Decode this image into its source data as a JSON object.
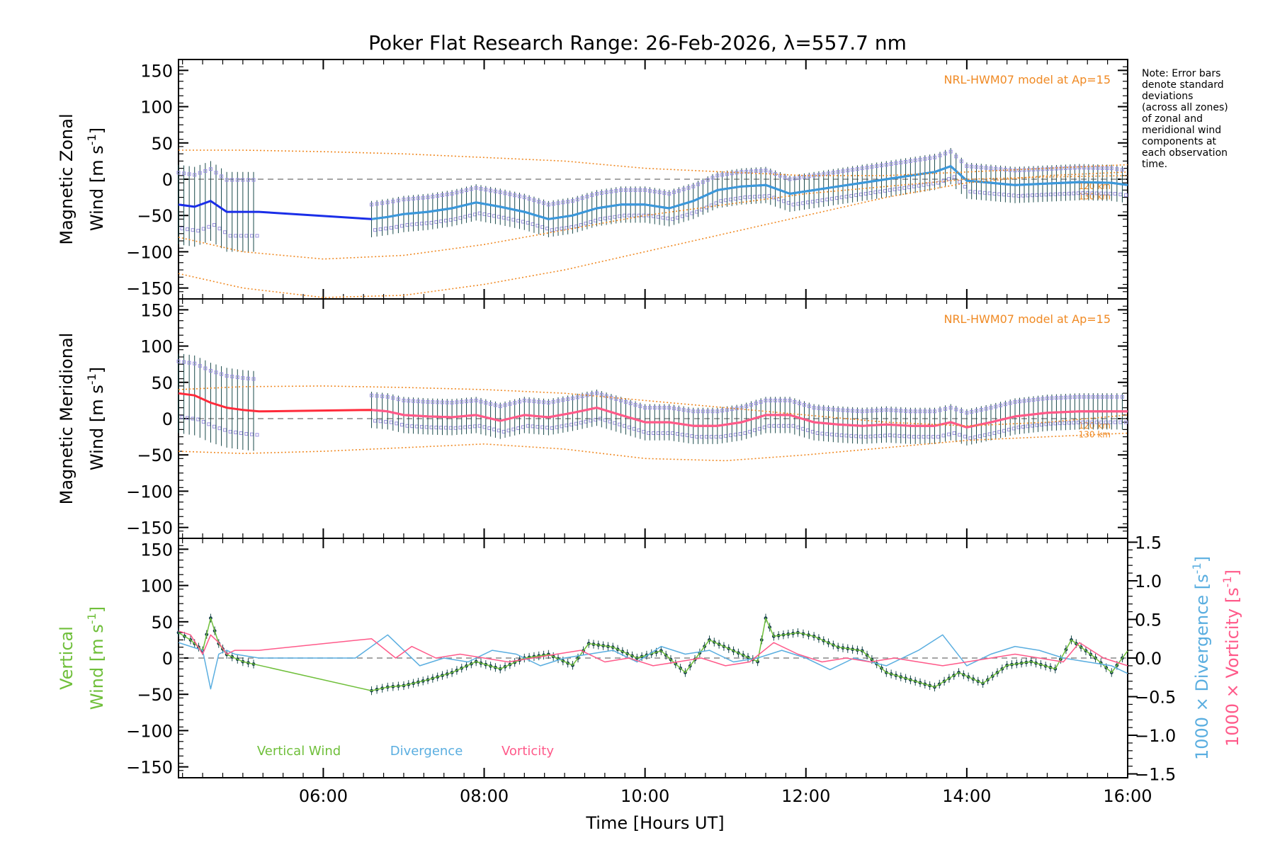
{
  "title": "Poker Flat Research Range: 26-Feb-2026, λ=557.7 nm",
  "note": [
    "Note: Error bars",
    "denote standard",
    "deviations",
    "(across all zones)",
    "of zonal and",
    "meridional wind",
    "components at",
    "each observation",
    "time."
  ],
  "xlabel": "Time [Hours UT]",
  "colors": {
    "model": "#f08a24",
    "zonal": "#1a2ee8",
    "zonal_smooth": "#3a9ad9",
    "meridional": "#ff2a3a",
    "meridional_smooth": "#ff5a8a",
    "vertical": "#6fbf3a",
    "divergence": "#5aaee0",
    "vorticity": "#ff5a8a",
    "errorbar": "#1a4a4a",
    "scatter": "#9a90e0"
  },
  "chart_data": [
    {
      "type": "line",
      "panel": "zonal",
      "ylabel_line1": "Magnetic Zonal",
      "ylabel_line2": "Wind [m s",
      "ylabel_sup": "-1",
      "ylabel_tail": "]",
      "model_label": "NRL-HWM07 model at Ap=15",
      "model_alt_labels": [
        "120 km",
        "130 km"
      ],
      "xlim": [
        4.2,
        16.0
      ],
      "ylim": [
        -165,
        165
      ],
      "yticks": [
        -150,
        -100,
        -50,
        0,
        50,
        100,
        150
      ],
      "ytick_labels": [
        "−150",
        "−100",
        "−50",
        "0",
        "50",
        "100",
        "150"
      ],
      "series": [
        {
          "name": "Zonal wind",
          "x": [
            4.2,
            4.4,
            4.6,
            4.8,
            5.0,
            5.2,
            6.6,
            6.8,
            7.0,
            7.3,
            7.6,
            7.9,
            8.2,
            8.5,
            8.8,
            9.1,
            9.4,
            9.7,
            10.0,
            10.3,
            10.6,
            10.9,
            11.2,
            11.5,
            11.8,
            12.1,
            12.4,
            12.7,
            13.0,
            13.3,
            13.6,
            13.8,
            14.0,
            14.3,
            14.6,
            15.0,
            15.4,
            15.8,
            16.0
          ],
          "y": [
            -35,
            -38,
            -30,
            -45,
            -45,
            -45,
            -55,
            -52,
            -48,
            -45,
            -40,
            -32,
            -38,
            -45,
            -55,
            -50,
            -40,
            -35,
            -35,
            -40,
            -30,
            -15,
            -10,
            -8,
            -20,
            -15,
            -10,
            -5,
            0,
            5,
            10,
            18,
            -2,
            -5,
            -8,
            -6,
            -4,
            -5,
            -8
          ]
        },
        {
          "name": "NRL-HWM07 120 km",
          "x": [
            4.2,
            5.0,
            6.0,
            7.0,
            8.0,
            9.0,
            10.0,
            11.0,
            12.0,
            13.0,
            14.0,
            15.0,
            16.0
          ],
          "y": [
            -80,
            -100,
            -110,
            -105,
            -90,
            -70,
            -50,
            -35,
            -20,
            -10,
            0,
            3,
            5
          ]
        },
        {
          "name": "NRL-HWM07 130 km",
          "x": [
            4.2,
            5.0,
            6.0,
            7.0,
            8.0,
            9.0,
            10.0,
            11.0,
            12.0,
            13.0,
            14.0,
            15.0,
            16.0
          ],
          "y": [
            -130,
            -150,
            -163,
            -160,
            -145,
            -125,
            -100,
            -75,
            -50,
            -25,
            -5,
            5,
            10
          ]
        },
        {
          "name": "NRL-HWM07 upper",
          "x": [
            4.2,
            5.0,
            6.0,
            7.0,
            8.0,
            9.0,
            10.0,
            11.0,
            12.0,
            13.0,
            14.0,
            15.0,
            16.0
          ],
          "y": [
            40,
            40,
            38,
            35,
            30,
            25,
            15,
            10,
            5,
            5,
            10,
            15,
            20
          ]
        }
      ]
    },
    {
      "type": "line",
      "panel": "meridional",
      "ylabel_line1": "Magnetic Meridional",
      "ylabel_line2": "Wind [m s",
      "ylabel_sup": "-1",
      "ylabel_tail": "]",
      "model_label": "NRL-HWM07 model at Ap=15",
      "model_alt_labels": [
        "120 km",
        "130 km"
      ],
      "xlim": [
        4.2,
        16.0
      ],
      "ylim": [
        -165,
        165
      ],
      "yticks": [
        -150,
        -100,
        -50,
        0,
        50,
        100,
        150
      ],
      "ytick_labels": [
        "−150",
        "−100",
        "−50",
        "0",
        "50",
        "100",
        "150"
      ],
      "series": [
        {
          "name": "Meridional wind",
          "x": [
            4.2,
            4.4,
            4.6,
            4.8,
            5.0,
            5.2,
            6.6,
            6.8,
            7.0,
            7.3,
            7.6,
            7.9,
            8.2,
            8.5,
            8.8,
            9.1,
            9.4,
            9.7,
            10.0,
            10.3,
            10.6,
            10.9,
            11.2,
            11.5,
            11.8,
            12.1,
            12.4,
            12.7,
            13.0,
            13.3,
            13.6,
            13.8,
            14.0,
            14.3,
            14.6,
            15.0,
            15.4,
            15.8,
            16.0
          ],
          "y": [
            35,
            32,
            22,
            15,
            12,
            10,
            12,
            10,
            5,
            3,
            2,
            5,
            -3,
            5,
            2,
            8,
            15,
            5,
            -5,
            -5,
            -10,
            -10,
            -5,
            5,
            5,
            -5,
            -8,
            -10,
            -8,
            -10,
            -10,
            -5,
            -12,
            -5,
            3,
            8,
            10,
            10,
            10
          ]
        },
        {
          "name": "NRL-HWM07 upper",
          "x": [
            4.2,
            5.0,
            6.0,
            7.0,
            8.0,
            9.0,
            10.0,
            11.0,
            12.0,
            13.0,
            14.0,
            15.0,
            16.0
          ],
          "y": [
            40,
            44,
            45,
            43,
            40,
            35,
            25,
            15,
            5,
            -5,
            -10,
            -5,
            5
          ]
        },
        {
          "name": "NRL-HWM07 lower",
          "x": [
            4.2,
            5.0,
            6.0,
            7.0,
            8.0,
            9.0,
            10.0,
            11.0,
            12.0,
            13.0,
            14.0,
            15.0,
            16.0
          ],
          "y": [
            -45,
            -48,
            -45,
            -40,
            -35,
            -42,
            -55,
            -58,
            -50,
            -40,
            -30,
            -25,
            -20
          ]
        }
      ]
    },
    {
      "type": "line",
      "panel": "vertical",
      "ylabel_line1": "Vertical",
      "ylabel_line2": "Wind [m s",
      "ylabel_sup": "-1",
      "ylabel_tail": "]",
      "right_label_div": "1000 × Divergence [s",
      "right_label_vor": "1000 × Vorticity [s",
      "right_sup": "-1",
      "right_tail": "]",
      "xlim": [
        4.2,
        16.0
      ],
      "ylim": [
        -165,
        165
      ],
      "y2lim": [
        -1.55,
        1.55
      ],
      "yticks": [
        -150,
        -100,
        -50,
        0,
        50,
        100,
        150
      ],
      "ytick_labels": [
        "−150",
        "−100",
        "−50",
        "0",
        "50",
        "100",
        "150"
      ],
      "y2ticks": [
        -1.5,
        -1.0,
        -0.5,
        0.0,
        0.5,
        1.0,
        1.5
      ],
      "y2tick_labels": [
        "−1.5",
        "−1.0",
        "−0.5",
        "0.0",
        "0.5",
        "1.0",
        "1.5"
      ],
      "legend": [
        "Vertical Wind",
        "Divergence",
        "Vorticity"
      ],
      "series": [
        {
          "name": "Vertical Wind",
          "axis": "left",
          "x": [
            4.2,
            4.35,
            4.5,
            4.6,
            4.7,
            4.8,
            5.0,
            5.2,
            6.6,
            6.8,
            7.0,
            7.3,
            7.6,
            7.9,
            8.2,
            8.5,
            8.8,
            9.1,
            9.3,
            9.6,
            9.9,
            10.2,
            10.5,
            10.8,
            11.1,
            11.4,
            11.5,
            11.6,
            11.9,
            12.1,
            12.4,
            12.7,
            13.0,
            13.3,
            13.6,
            13.9,
            14.2,
            14.5,
            14.8,
            15.1,
            15.3,
            15.6,
            15.8,
            16.0
          ],
          "y": [
            35,
            25,
            10,
            55,
            20,
            5,
            -5,
            -10,
            -45,
            -40,
            -38,
            -30,
            -20,
            -5,
            -15,
            0,
            5,
            -10,
            20,
            15,
            0,
            10,
            -20,
            25,
            10,
            -5,
            55,
            30,
            35,
            30,
            15,
            10,
            -20,
            -30,
            -40,
            -20,
            -35,
            -10,
            -5,
            -15,
            25,
            0,
            -20,
            10
          ]
        },
        {
          "name": "Divergence",
          "axis": "right",
          "x": [
            4.2,
            4.35,
            4.5,
            4.6,
            4.7,
            4.8,
            4.9,
            5.2,
            6.4,
            6.8,
            7.0,
            7.2,
            7.5,
            7.8,
            8.1,
            8.4,
            8.7,
            9.0,
            9.3,
            9.6,
            9.9,
            10.2,
            10.5,
            10.8,
            11.1,
            11.4,
            11.7,
            12.0,
            12.3,
            12.6,
            13.0,
            13.4,
            13.7,
            14.0,
            14.3,
            14.6,
            14.9,
            15.2,
            15.5,
            15.8,
            16.0
          ],
          "y": [
            0.2,
            0.15,
            0.1,
            -0.4,
            0.05,
            0.1,
            0.05,
            0.0,
            0.0,
            0.3,
            0.1,
            -0.1,
            0.0,
            -0.05,
            0.1,
            0.05,
            -0.1,
            0.0,
            0.05,
            0.1,
            -0.05,
            0.15,
            0.05,
            0.1,
            -0.05,
            0.0,
            0.1,
            0.0,
            -0.15,
            0.0,
            -0.1,
            0.1,
            0.3,
            -0.1,
            0.05,
            0.15,
            0.1,
            0.0,
            -0.05,
            -0.1,
            -0.2
          ]
        },
        {
          "name": "Vorticity",
          "axis": "right",
          "x": [
            4.2,
            4.35,
            4.5,
            4.6,
            4.7,
            4.8,
            4.9,
            5.2,
            6.6,
            6.9,
            7.1,
            7.4,
            7.7,
            8.0,
            8.3,
            8.6,
            8.9,
            9.2,
            9.5,
            9.8,
            10.1,
            10.4,
            10.7,
            11.0,
            11.3,
            11.6,
            11.9,
            12.2,
            12.5,
            12.8,
            13.1,
            13.4,
            13.7,
            14.0,
            14.3,
            14.6,
            14.9,
            15.2,
            15.4,
            15.7,
            16.0
          ],
          "y": [
            0.35,
            0.3,
            0.05,
            0.3,
            0.2,
            0.05,
            0.1,
            0.1,
            0.25,
            0.0,
            0.15,
            0.0,
            0.05,
            0.0,
            -0.05,
            0.0,
            0.05,
            0.1,
            -0.05,
            0.0,
            -0.1,
            -0.05,
            0.0,
            -0.1,
            -0.05,
            0.2,
            0.05,
            -0.05,
            0.0,
            -0.05,
            0.0,
            -0.05,
            -0.1,
            -0.05,
            0.0,
            0.05,
            0.0,
            -0.05,
            0.2,
            0.0,
            -0.1
          ]
        }
      ]
    }
  ],
  "xticks": [
    6,
    8,
    10,
    12,
    14,
    16
  ],
  "xtick_labels": [
    "06:00",
    "08:00",
    "10:00",
    "12:00",
    "14:00",
    "16:00"
  ]
}
